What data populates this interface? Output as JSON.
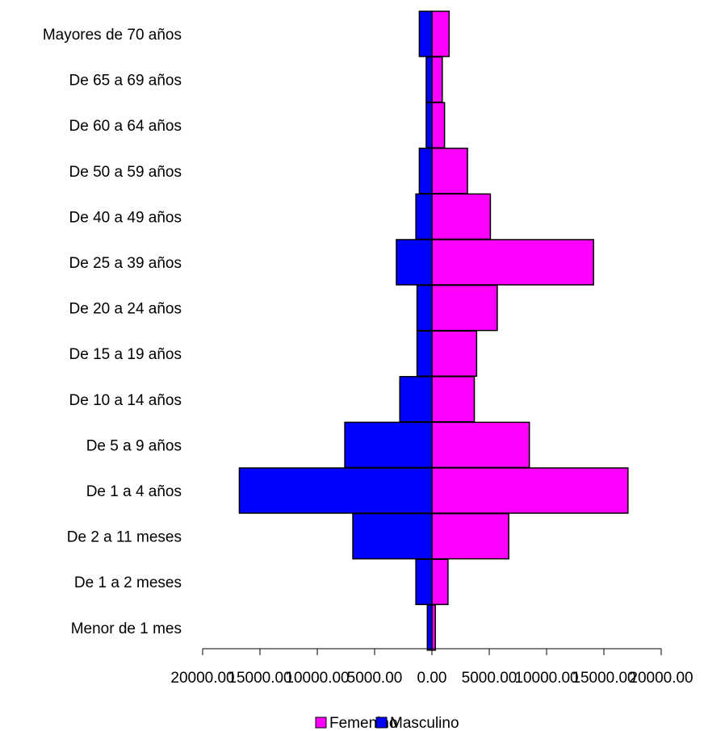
{
  "chart_data": {
    "type": "bar",
    "orientation": "horizontal",
    "layout": "population-pyramid",
    "categories": [
      "Menor de 1 mes",
      "De 1 a 2 meses",
      "De 2 a 11 meses",
      "De 1 a 4 años",
      "De 5 a 9 años",
      "De 10 a 14 años",
      "De 15 a 19 años",
      "De 20 a 24 años",
      "De 25 a 39 años",
      "De 40 a 49 años",
      "De 50 a 59 años",
      "De 60 a 64 años",
      "De 65 a 69 años",
      "Mayores de 70 años"
    ],
    "series": [
      {
        "name": "Femenino",
        "color": "#ff00ff",
        "direction": "right",
        "values": [
          300,
          1400,
          6700,
          17100,
          8500,
          3700,
          3900,
          5700,
          14100,
          5100,
          3100,
          1100,
          900,
          1500
        ]
      },
      {
        "name": "Masculino",
        "color": "#0000ff",
        "direction": "left",
        "values": [
          400,
          1400,
          6900,
          16800,
          7600,
          2800,
          1300,
          1300,
          3100,
          1400,
          1100,
          500,
          500,
          1100
        ]
      }
    ],
    "x_ticks": [
      "20000.00",
      "15000.00",
      "10000.00",
      "5000.00",
      "0.00",
      "5000.00",
      "10000.00",
      "15000.00",
      "20000.00"
    ],
    "xlim": [
      -20000,
      20000
    ],
    "title": "",
    "xlabel": "",
    "ylabel": "",
    "grid": false,
    "legend_position": "bottom"
  }
}
